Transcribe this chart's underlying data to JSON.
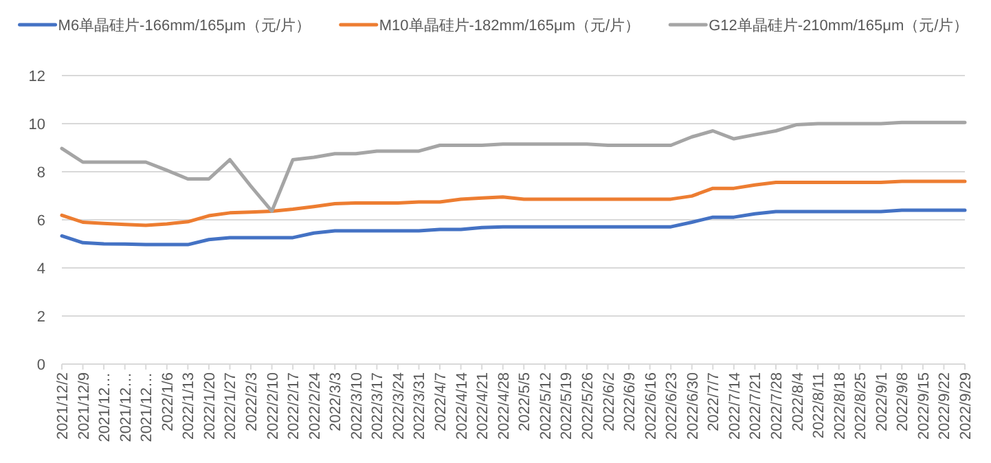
{
  "chart_data": {
    "type": "line",
    "categories": [
      "2021/12/2",
      "2021/12/9",
      "2021/12…",
      "2021/12…",
      "2021/12…",
      "2022/1/6",
      "2022/1/13",
      "2022/1/20",
      "2022/1/27",
      "2022/2/3",
      "2022/2/10",
      "2022/2/17",
      "2022/2/24",
      "2022/3/3",
      "2022/3/10",
      "2022/3/17",
      "2022/3/24",
      "2022/3/31",
      "2022/4/7",
      "2022/4/14",
      "2022/4/21",
      "2022/4/28",
      "2022/5/5",
      "2022/5/12",
      "2022/5/19",
      "2022/5/26",
      "2022/6/2",
      "2022/6/9",
      "2022/6/16",
      "2022/6/23",
      "2022/6/30",
      "2022/7/7",
      "2022/7/14",
      "2022/7/21",
      "2022/7/28",
      "2022/8/4",
      "2022/8/11",
      "2022/8/18",
      "2022/8/25",
      "2022/9/1",
      "2022/9/8",
      "2022/9/15",
      "2022/9/22",
      "2022/9/29"
    ],
    "series": [
      {
        "name": "M6单晶硅片-166mm/165μm（元/片）",
        "color": "#4472c4",
        "values": [
          5.33,
          5.05,
          5.0,
          4.99,
          4.97,
          4.97,
          4.97,
          5.18,
          5.26,
          5.26,
          5.26,
          5.26,
          5.45,
          5.54,
          5.54,
          5.54,
          5.54,
          5.54,
          5.6,
          5.6,
          5.68,
          5.71,
          5.71,
          5.71,
          5.71,
          5.71,
          5.71,
          5.71,
          5.71,
          5.71,
          5.9,
          6.11,
          6.11,
          6.25,
          6.34,
          6.34,
          6.34,
          6.34,
          6.34,
          6.34,
          6.4,
          6.4,
          6.4,
          6.4
        ]
      },
      {
        "name": "M10单晶硅片-182mm/165μm（元/片）",
        "color": "#ed7d31",
        "values": [
          6.19,
          5.9,
          5.85,
          5.81,
          5.77,
          5.83,
          5.92,
          6.17,
          6.29,
          6.32,
          6.36,
          6.44,
          6.55,
          6.67,
          6.7,
          6.7,
          6.7,
          6.74,
          6.74,
          6.86,
          6.91,
          6.95,
          6.86,
          6.86,
          6.86,
          6.86,
          6.86,
          6.86,
          6.86,
          6.86,
          6.99,
          7.31,
          7.31,
          7.45,
          7.56,
          7.56,
          7.56,
          7.56,
          7.56,
          7.56,
          7.6,
          7.6,
          7.6,
          7.6
        ]
      },
      {
        "name": "G12单晶硅片-210mm/165μm（元/片）",
        "color": "#a5a5a5",
        "values": [
          8.97,
          8.4,
          8.4,
          8.4,
          8.4,
          8.06,
          7.7,
          7.7,
          8.5,
          7.4,
          6.36,
          8.5,
          8.6,
          8.75,
          8.75,
          8.86,
          8.86,
          8.86,
          9.1,
          9.1,
          9.1,
          9.15,
          9.15,
          9.15,
          9.15,
          9.15,
          9.1,
          9.1,
          9.1,
          9.1,
          9.45,
          9.7,
          9.37,
          9.54,
          9.7,
          9.96,
          10.0,
          10.0,
          10.0,
          10.0,
          10.05,
          10.05,
          10.05,
          10.05
        ]
      }
    ],
    "ylim": [
      0,
      12
    ],
    "yticks": [
      0,
      2,
      4,
      6,
      8,
      10,
      12
    ],
    "grid": "y",
    "legend": "top",
    "line_style": "solid",
    "marker": "none"
  }
}
